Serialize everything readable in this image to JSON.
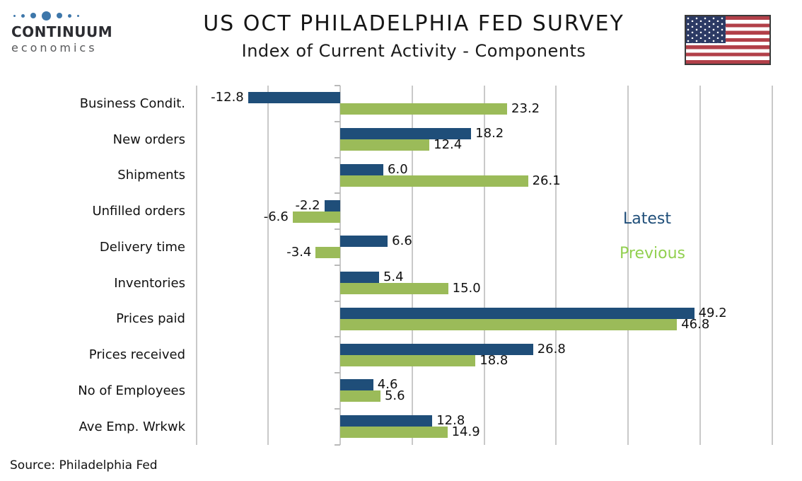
{
  "header": {
    "logo": {
      "brand": "CONTINUUM",
      "subbrand": "economics"
    },
    "title": "US OCT PHILADELPHIA FED SURVEY",
    "subtitle": "Index of Current Activity - Components"
  },
  "colors": {
    "latest_bar": "#1F4E79",
    "previous_bar": "#9BBB59",
    "legend_latest_text": "#1F4E79",
    "legend_previous_text": "#92D050",
    "gridline": "#C9C9C9",
    "logo_dot_blue": "#3E77AA",
    "flag_red": "#B24049",
    "flag_blue": "#2C3A64"
  },
  "chart_data": {
    "type": "bar",
    "orientation": "horizontal",
    "title": "US OCT PHILADELPHIA FED SURVEY",
    "subtitle": "Index of Current Activity - Components",
    "categories": [
      "Business Condit.",
      "New orders",
      "Shipments",
      "Unfilled orders",
      "Delivery time",
      "Inventories",
      "Prices paid",
      "Prices received",
      "No of Employees",
      "Ave Emp. Wrkwk"
    ],
    "series": [
      {
        "name": "Latest",
        "color": "#1F4E79",
        "values": [
          -12.8,
          18.2,
          6.0,
          -2.2,
          6.6,
          5.4,
          49.2,
          26.8,
          4.6,
          12.8
        ]
      },
      {
        "name": "Previous",
        "color": "#9BBB59",
        "values": [
          23.2,
          12.4,
          26.1,
          -6.6,
          -3.4,
          15.0,
          46.8,
          18.8,
          5.6,
          14.9
        ]
      }
    ],
    "xlim": [
      -20,
      60
    ],
    "gridline_step": 10,
    "grid": true,
    "axis_tick_labels_visible": false,
    "value_labels": true,
    "value_format": "one-decimal",
    "legend_position": "right-middle"
  },
  "footer": {
    "source": "Source: Philadelphia Fed"
  }
}
